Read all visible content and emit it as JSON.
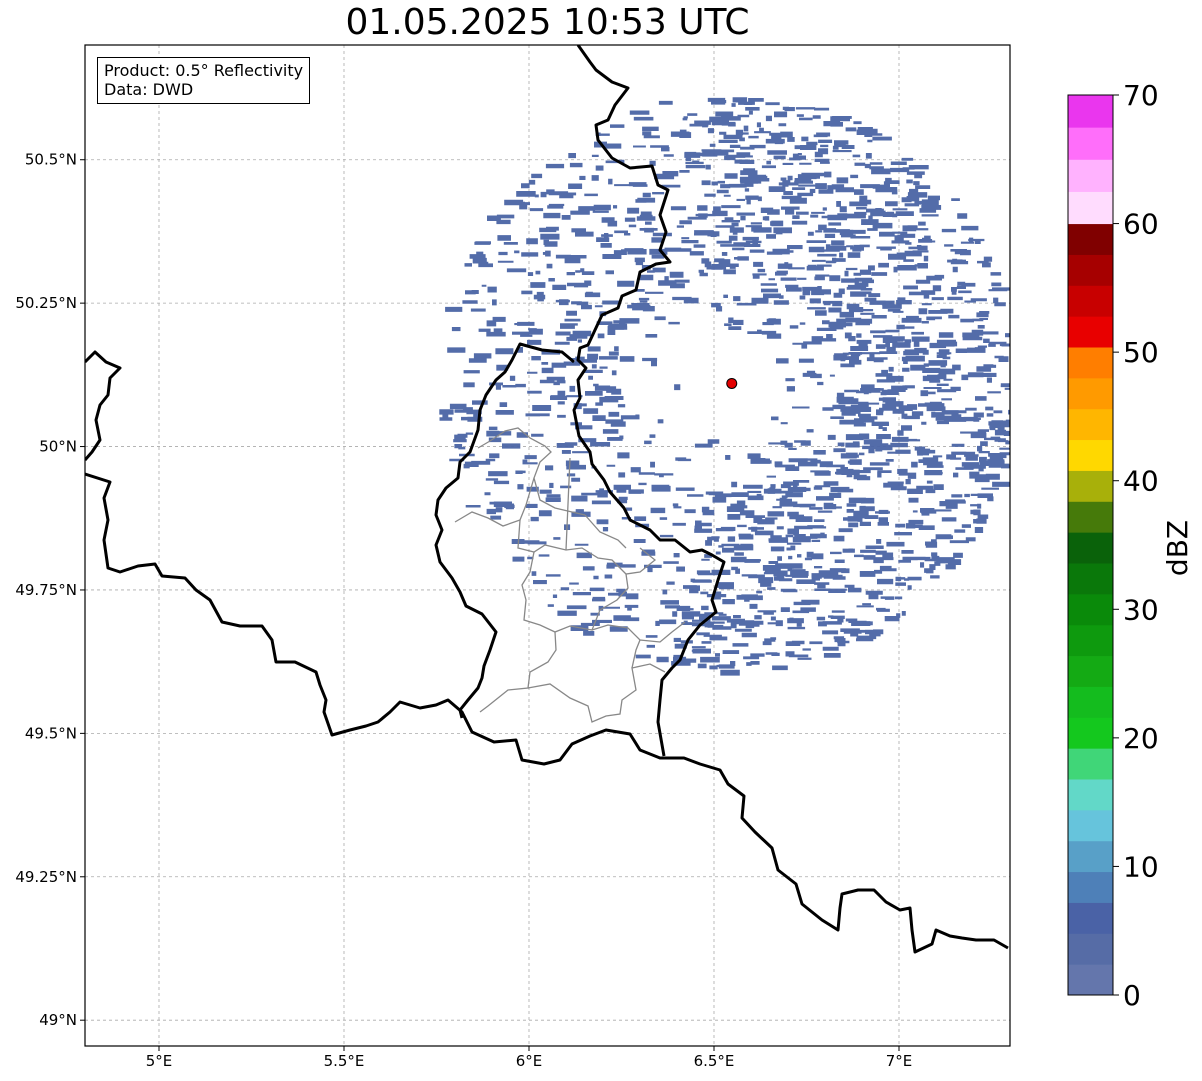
{
  "title": "01.05.2025 10:53 UTC",
  "info": {
    "product": "Product: 0.5° Reflectivity",
    "data_source": "Data: DWD"
  },
  "map": {
    "lon_range": [
      4.8,
      7.3
    ],
    "lat_range": [
      48.955,
      50.7
    ],
    "lon_ticks": [
      {
        "value": 5.0,
        "label": "5°E"
      },
      {
        "value": 5.5,
        "label": "5.5°E"
      },
      {
        "value": 6.0,
        "label": "6°E"
      },
      {
        "value": 6.5,
        "label": "6.5°E"
      },
      {
        "value": 7.0,
        "label": "7°E"
      }
    ],
    "lat_ticks": [
      {
        "value": 49.0,
        "label": "49°N"
      },
      {
        "value": 49.25,
        "label": "49.25°N"
      },
      {
        "value": 49.5,
        "label": "49.5°N"
      },
      {
        "value": 49.75,
        "label": "49.75°N"
      },
      {
        "value": 50.0,
        "label": "50°N"
      },
      {
        "value": 50.25,
        "label": "50.25°N"
      },
      {
        "value": 50.5,
        "label": "50.5°N"
      }
    ],
    "grid": true,
    "radar_site": {
      "lon": 6.548,
      "lat": 50.11,
      "color": "#e30000"
    },
    "echo_color": "#4a64a4"
  },
  "colorbar": {
    "label": "dBZ",
    "range": [
      0,
      70
    ],
    "ticks": [
      0,
      10,
      20,
      30,
      40,
      50,
      60,
      70
    ],
    "colors": [
      "#6476ac",
      "#566ca6",
      "#4a62a6",
      "#4e80b8",
      "#58a0c8",
      "#66c4dc",
      "#62d8c8",
      "#40d678",
      "#14c81e",
      "#14bc1e",
      "#14aa14",
      "#0e9a0e",
      "#0a8a0a",
      "#0a780a",
      "#0a620a",
      "#467a0a",
      "#a8b00a",
      "#ffd800",
      "#ffb600",
      "#ff9a00",
      "#ff7e00",
      "#e80000",
      "#c80000",
      "#a60000",
      "#800000",
      "#ffdcfe",
      "#ffb2fe",
      "#ff6efa",
      "#ea36ee"
    ]
  }
}
